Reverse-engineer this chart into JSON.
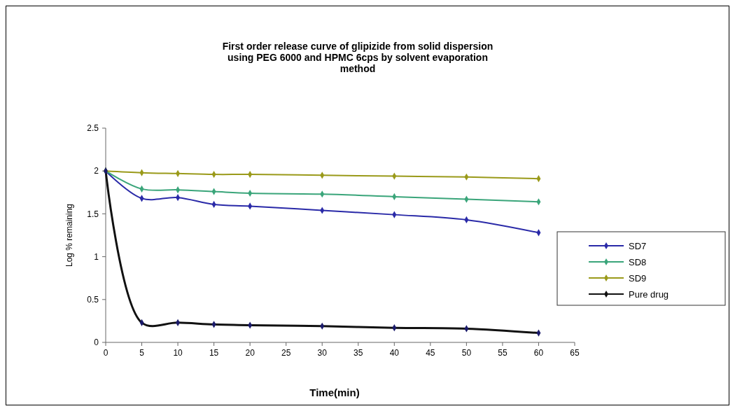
{
  "chart_data": {
    "type": "line",
    "title": "First order release curve of glipizide from solid dispersion\nusing PEG 6000 and HPMC 6cps by solvent evaporation\nmethod",
    "xlabel": "Time(min)",
    "ylabel": "Log % remaining",
    "x": [
      0,
      5,
      10,
      15,
      20,
      30,
      40,
      50,
      60
    ],
    "series": [
      {
        "name": "SD7",
        "color": "#2a2aa8",
        "values": [
          2,
          1.68,
          1.69,
          1.61,
          1.59,
          1.54,
          1.49,
          1.43,
          1.28
        ]
      },
      {
        "name": "SD8",
        "color": "#3aa57a",
        "values": [
          2,
          1.79,
          1.78,
          1.76,
          1.74,
          1.73,
          1.7,
          1.67,
          1.64
        ]
      },
      {
        "name": "SD9",
        "color": "#9a9a1a",
        "values": [
          2,
          1.98,
          1.97,
          1.96,
          1.96,
          1.95,
          1.94,
          1.93,
          1.91
        ]
      },
      {
        "name": "Pure drug",
        "color": "#111111",
        "values": [
          2,
          0.23,
          0.23,
          0.21,
          0.2,
          0.19,
          0.17,
          0.16,
          0.11
        ]
      }
    ],
    "xlim": [
      0,
      65
    ],
    "xticks": [
      0,
      5,
      10,
      15,
      20,
      25,
      30,
      35,
      40,
      45,
      50,
      55,
      60,
      65
    ],
    "ylim": [
      0,
      2.5
    ],
    "yticks": [
      0,
      0.5,
      1,
      1.5,
      2,
      2.5
    ],
    "grid": false,
    "legend": "right",
    "marker": "diamond",
    "line_style": "solid"
  }
}
